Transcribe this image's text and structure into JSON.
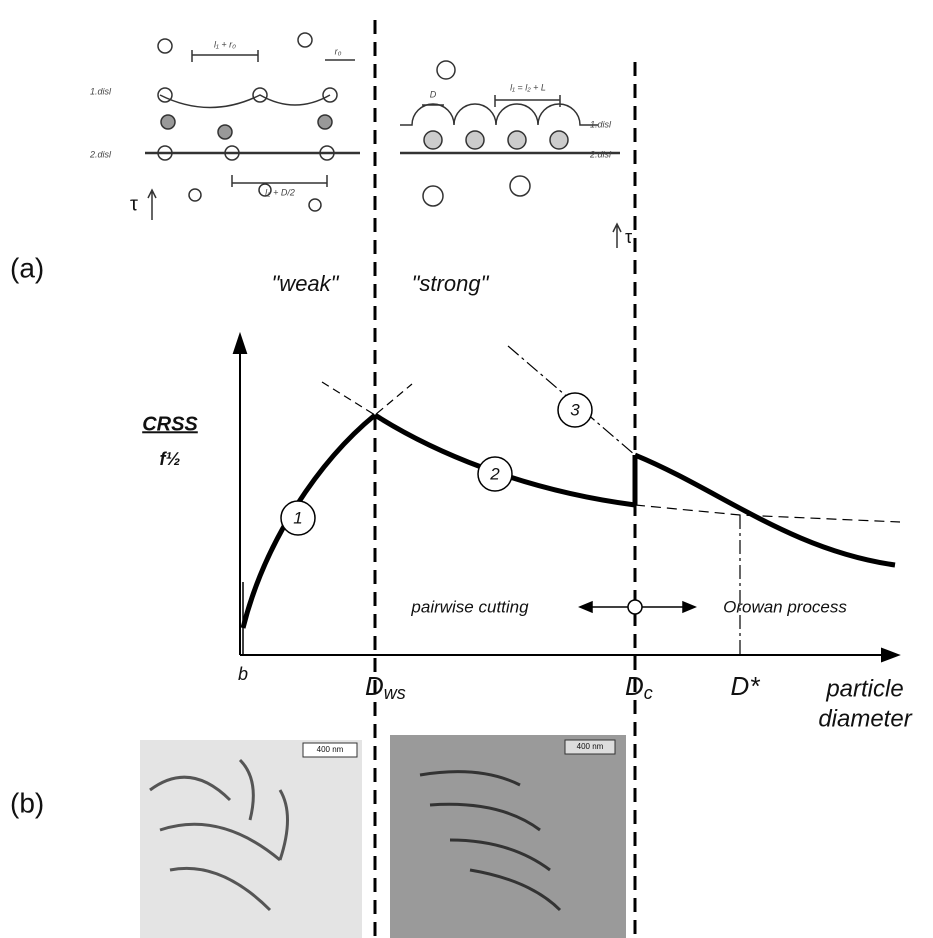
{
  "panel_labels": [
    "(a)",
    "(b)"
  ],
  "regimes": {
    "weak": "\"weak\"",
    "strong": "\"strong\""
  },
  "y_axis": {
    "numerator": "CRSS",
    "denominator": "f½"
  },
  "curve_labels": [
    "1",
    "2",
    "3"
  ],
  "annotations": {
    "pairwise": "pairwise cutting",
    "orowan": "Orowan process"
  },
  "x_axis": {
    "ticks": [
      {
        "main": "b"
      },
      {
        "main": "D",
        "sub": "ws"
      },
      {
        "main": "D",
        "sub": "c"
      },
      {
        "main": "D*"
      }
    ],
    "title": [
      "particle",
      "diameter"
    ]
  },
  "schematic": {
    "weak": {
      "disl_labels": [
        "1.disl",
        "2.disl"
      ],
      "stress": "τ",
      "spacings": [
        "l₁ + r₀",
        "r₀",
        "l₂ + D/2"
      ]
    },
    "strong": {
      "disl_labels": [
        "1.disl",
        "2.disl"
      ],
      "stress": "τ",
      "spacings": [
        "D",
        "l₁ = l₂ + L"
      ]
    }
  },
  "micrographs": {
    "scale_bars": [
      "400 nm",
      "400 nm"
    ]
  }
}
